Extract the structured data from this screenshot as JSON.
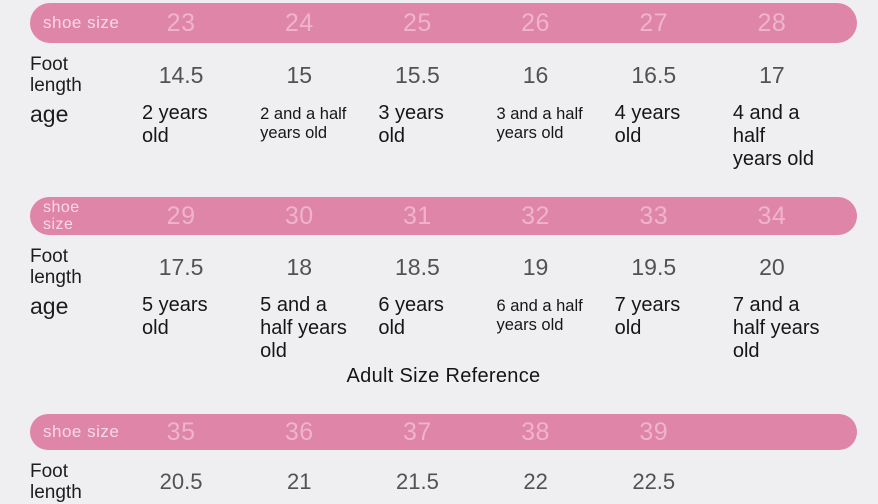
{
  "section_title": "Adult Size Reference",
  "colors": {
    "background": "#efeef0",
    "header_bar": "#df85a8",
    "header_label_text": "#f7d9e5",
    "header_number_text": "#efb4ca",
    "foot_value_text": "#535153",
    "body_text": "#1d1d1f"
  },
  "tables": [
    {
      "header_label": "shoe size",
      "sizes": [
        "23",
        "24",
        "25",
        "26",
        "27",
        "28"
      ],
      "foot_label": "Foot\nlength",
      "foot_lengths": [
        "14.5",
        "15",
        "15.5",
        "16",
        "16.5",
        "17"
      ],
      "age_label": "age",
      "ages": [
        "2 years\nold",
        "2 and a half\nyears old",
        "3 years\nold",
        "3 and a half\nyears old",
        "4 years\nold",
        "4 and a half\nyears old"
      ]
    },
    {
      "header_label": "shoe\nsize",
      "sizes": [
        "29",
        "30",
        "31",
        "32",
        "33",
        "34"
      ],
      "foot_label": "Foot\nlength",
      "foot_lengths": [
        "17.5",
        "18",
        "18.5",
        "19",
        "19.5",
        "20"
      ],
      "age_label": "age",
      "ages": [
        "5 years\nold",
        "5 and a\nhalf years\nold",
        "6 years\nold",
        "6 and a half\nyears old",
        "7 years\nold",
        "7 and a\nhalf years\nold"
      ]
    },
    {
      "header_label": "shoe size",
      "sizes": [
        "35",
        "36",
        "37",
        "38",
        "39"
      ],
      "foot_label": "Foot\nlength",
      "foot_lengths": [
        "20.5",
        "21",
        "21.5",
        "22",
        "22.5"
      ]
    }
  ]
}
